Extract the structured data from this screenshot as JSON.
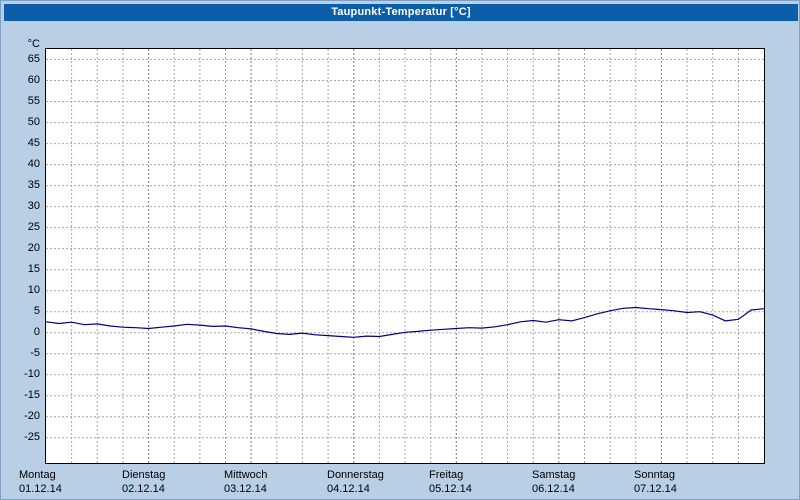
{
  "title": "Taupunkt-Temperatur [°C]",
  "colors": {
    "titlebar_bg": "#0d5ea8",
    "titlebar_text": "#ffffff",
    "window_bg": "#b8cfe6",
    "plot_bg": "#ffffff",
    "plot_border": "#000000",
    "grid": "#a8a8a8",
    "grid_day": "#7d7d7d",
    "line": "#000080",
    "label_text": "#000000"
  },
  "chart_data": {
    "type": "line",
    "title": "Taupunkt-Temperatur [°C]",
    "xlabel": "",
    "ylabel": "°C",
    "ylim": [
      -31,
      67.5
    ],
    "yticks": [
      65,
      60,
      55,
      50,
      45,
      40,
      35,
      30,
      25,
      20,
      15,
      10,
      5,
      0,
      -5,
      -10,
      -15,
      -20,
      -25
    ],
    "grid": "dashed",
    "legend_position": "none",
    "subdivisions_per_day": 4,
    "x_days": [
      {
        "name": "Montag",
        "date": "01.12.14"
      },
      {
        "name": "Dienstag",
        "date": "02.12.14"
      },
      {
        "name": "Mittwoch",
        "date": "03.12.14"
      },
      {
        "name": "Donnerstag",
        "date": "04.12.14"
      },
      {
        "name": "Freitag",
        "date": "05.12.14"
      },
      {
        "name": "Samstag",
        "date": "06.12.14"
      },
      {
        "name": "Sonntag",
        "date": "07.12.14"
      }
    ],
    "series": [
      {
        "name": "Taupunkt-Temperatur",
        "unit": "°C",
        "color": "#000080",
        "sample_interval_hours": 3,
        "values": [
          2.6,
          2.2,
          2.5,
          1.9,
          2.1,
          1.6,
          1.3,
          1.2,
          1.0,
          1.3,
          1.6,
          2.0,
          1.8,
          1.5,
          1.6,
          1.2,
          0.9,
          0.3,
          -0.2,
          -0.4,
          -0.1,
          -0.5,
          -0.7,
          -0.9,
          -1.1,
          -0.8,
          -0.9,
          -0.4,
          0.1,
          0.3,
          0.6,
          0.8,
          1.0,
          1.2,
          1.1,
          1.4,
          1.9,
          2.6,
          2.9,
          2.5,
          3.1,
          2.8,
          3.6,
          4.5,
          5.2,
          5.8,
          6.0,
          5.7,
          5.5,
          5.2,
          4.8,
          5.0,
          4.2,
          2.8,
          3.2,
          5.4,
          5.7
        ]
      }
    ]
  }
}
